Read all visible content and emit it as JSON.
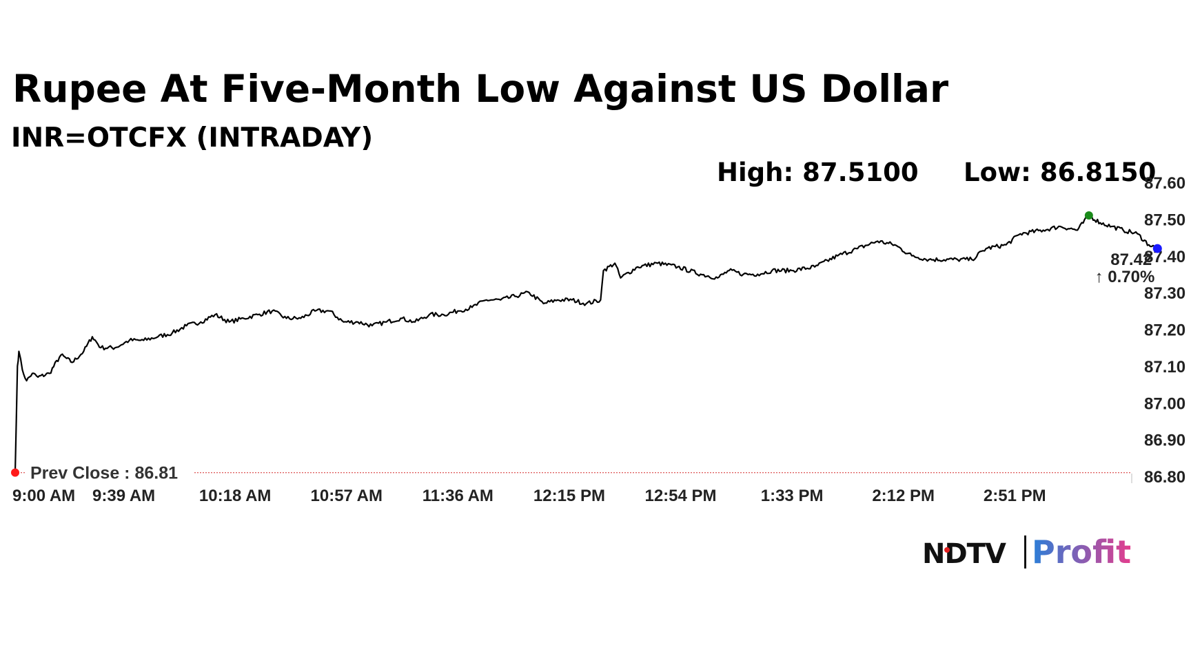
{
  "header": {
    "title": "Rupee At Five-Month Low Against US Dollar",
    "subtitle": "INR=OTCFX (INTRADAY)",
    "high_label": "High: 87.5100",
    "low_label": "Low: 86.8150"
  },
  "chart_data": {
    "type": "line",
    "title": "Rupee At Five-Month Low Against US Dollar",
    "subtitle": "INR=OTCFX (INTRADAY)",
    "xlabel": "",
    "ylabel": "",
    "ylim": [
      86.8,
      87.6
    ],
    "y_ticks": [
      "87.60",
      "87.50",
      "87.40",
      "87.30",
      "87.20",
      "87.10",
      "87.00",
      "86.90",
      "86.80"
    ],
    "x_ticks": [
      "9:00 AM",
      "9:39 AM",
      "10:18 AM",
      "10:57 AM",
      "11:36 AM",
      "12:15 PM",
      "12:54 PM",
      "1:33 PM",
      "2:12 PM",
      "2:51 PM"
    ],
    "x_tick_minutes": [
      0,
      39,
      78,
      117,
      156,
      195,
      234,
      273,
      312,
      351
    ],
    "x_range_minutes": [
      0,
      391
    ],
    "grid": false,
    "series": [
      {
        "values": [
          [
            0,
            86.81
          ],
          [
            0.8,
            87.1
          ],
          [
            1.3,
            87.14
          ],
          [
            2.5,
            87.09
          ],
          [
            4,
            87.06
          ],
          [
            6,
            87.08
          ],
          [
            8,
            87.07
          ],
          [
            12,
            87.08
          ],
          [
            16,
            87.13
          ],
          [
            20,
            87.11
          ],
          [
            24,
            87.14
          ],
          [
            27,
            87.18
          ],
          [
            30,
            87.15
          ],
          [
            35,
            87.15
          ],
          [
            40,
            87.17
          ],
          [
            45,
            87.17
          ],
          [
            50,
            87.18
          ],
          [
            55,
            87.19
          ],
          [
            60,
            87.21
          ],
          [
            65,
            87.22
          ],
          [
            70,
            87.24
          ],
          [
            75,
            87.22
          ],
          [
            80,
            87.23
          ],
          [
            85,
            87.24
          ],
          [
            90,
            87.25
          ],
          [
            95,
            87.23
          ],
          [
            100,
            87.23
          ],
          [
            105,
            87.25
          ],
          [
            110,
            87.25
          ],
          [
            115,
            87.22
          ],
          [
            120,
            87.22
          ],
          [
            125,
            87.21
          ],
          [
            130,
            87.22
          ],
          [
            135,
            87.23
          ],
          [
            140,
            87.22
          ],
          [
            145,
            87.24
          ],
          [
            150,
            87.24
          ],
          [
            155,
            87.25
          ],
          [
            160,
            87.26
          ],
          [
            165,
            87.28
          ],
          [
            170,
            87.28
          ],
          [
            175,
            87.29
          ],
          [
            180,
            87.3
          ],
          [
            185,
            87.27
          ],
          [
            190,
            87.28
          ],
          [
            195,
            87.28
          ],
          [
            200,
            87.27
          ],
          [
            205,
            87.28
          ],
          [
            206,
            87.36
          ],
          [
            210,
            87.38
          ],
          [
            212,
            87.34
          ],
          [
            218,
            87.37
          ],
          [
            225,
            87.38
          ],
          [
            232,
            87.37
          ],
          [
            240,
            87.35
          ],
          [
            246,
            87.34
          ],
          [
            250,
            87.36
          ],
          [
            255,
            87.35
          ],
          [
            260,
            87.35
          ],
          [
            265,
            87.36
          ],
          [
            272,
            87.36
          ],
          [
            280,
            87.37
          ],
          [
            288,
            87.4
          ],
          [
            295,
            87.42
          ],
          [
            302,
            87.44
          ],
          [
            308,
            87.43
          ],
          [
            314,
            87.4
          ],
          [
            320,
            87.39
          ],
          [
            330,
            87.39
          ],
          [
            335,
            87.39
          ],
          [
            340,
            87.42
          ],
          [
            347,
            87.43
          ],
          [
            352,
            87.46
          ],
          [
            360,
            87.47
          ],
          [
            366,
            87.48
          ],
          [
            372,
            87.47
          ],
          [
            376,
            87.51
          ],
          [
            380,
            87.49
          ],
          [
            384,
            87.48
          ],
          [
            388,
            87.47
          ],
          [
            393,
            87.46
          ],
          [
            397,
            87.43
          ],
          [
            400,
            87.42
          ]
        ]
      }
    ],
    "prev_close": {
      "label": "Prev Close : 86.81",
      "value": 86.81
    },
    "high_point": {
      "x": 376,
      "y": 87.51
    },
    "last": {
      "label": "87.42",
      "change": "↑ 0.70%",
      "x": 400,
      "y": 87.42
    },
    "colors": {
      "line": "#000000",
      "prev_close_line": "#e06060",
      "start_dot": "#ff1a1a",
      "high_dot": "#1a8a1a",
      "last_dot": "#1a1aff",
      "change_text": "#1a8a1a"
    }
  },
  "brand": {
    "ndtv": "NDTV",
    "profit": "Profit",
    "ndtv_color": "#111111",
    "profit_gradient": [
      "#2a7fd8",
      "#e43d8d"
    ]
  }
}
